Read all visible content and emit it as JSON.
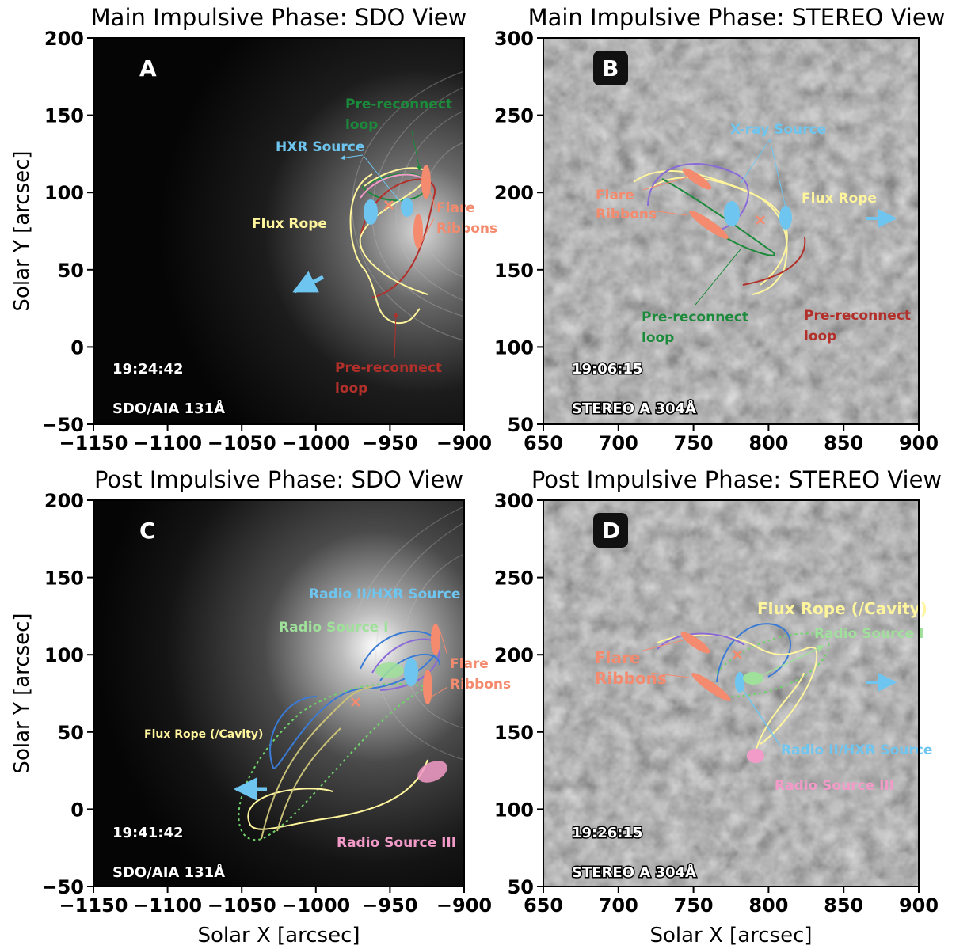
{
  "panels": [
    {
      "id": "A",
      "title": "Main Impulsive Phase: SDO View",
      "letter": "A",
      "time": "19:24:42",
      "instrument": "SDO/AIA 131Å",
      "xticks": [
        "−1150",
        "−1100",
        "−1050",
        "−1000",
        "−950",
        "−900"
      ],
      "yticks": [
        "200",
        "150",
        "100",
        "50",
        "0",
        "−50"
      ],
      "labels": {
        "preloop_top": [
          "Pre-reconnect",
          "loop"
        ],
        "hxr": "HXR Source",
        "flux_rope": "Flux Rope",
        "flare_ribbons": [
          "Flare",
          "Ribbons"
        ],
        "preloop_bottom": [
          "Pre-reconnect",
          "loop"
        ]
      }
    },
    {
      "id": "B",
      "title": "Main Impulsive Phase: STEREO View",
      "letter": "B",
      "time": "19:06:15",
      "instrument": "STEREO A 304Å",
      "xticks": [
        "650",
        "700",
        "750",
        "800",
        "850",
        "900"
      ],
      "yticks": [
        "300",
        "250",
        "200",
        "150",
        "100",
        "50"
      ],
      "labels": {
        "xray": "X-ray Source",
        "flare_ribbons": [
          "Flare",
          "Ribbons"
        ],
        "flux_rope": "Flux Rope",
        "preloop_green": [
          "Pre-reconnect",
          "loop"
        ],
        "preloop_red": [
          "Pre-reconnect",
          "loop"
        ]
      }
    },
    {
      "id": "C",
      "title": "Post Impulsive Phase: SDO View",
      "letter": "C",
      "time": "19:41:42",
      "instrument": "SDO/AIA 131Å",
      "xticks": [
        "−1150",
        "−1100",
        "−1050",
        "−1000",
        "−950",
        "−900"
      ],
      "yticks": [
        "200",
        "150",
        "100",
        "50",
        "0",
        "−50"
      ],
      "labels": {
        "radio2": "Radio II/HXR Source",
        "radio1": "Radio Source I",
        "flare_ribbons": [
          "Flare",
          "Ribbons"
        ],
        "flux_rope": "Flux Rope (/Cavity)",
        "radio3": "Radio Source III"
      }
    },
    {
      "id": "D",
      "title": "Post Impulsive Phase: STEREO View",
      "letter": "D",
      "time": "19:26:15",
      "instrument": "STEREO A 304Å",
      "xticks": [
        "650",
        "700",
        "750",
        "800",
        "850",
        "900"
      ],
      "yticks": [
        "300",
        "250",
        "200",
        "150",
        "100",
        "50"
      ],
      "labels": {
        "flux_rope": "Flux Rope (/Cavity)",
        "radio1": "Radio Source I",
        "flare_ribbons": [
          "Flare",
          "Ribbons"
        ],
        "radio2": "Radio II/HXR Source",
        "radio3": "Radio Source III"
      }
    }
  ],
  "axis_labels": {
    "ylabel": "Solar Y [arcsec]",
    "xlabel": "Solar X [arcsec]"
  },
  "colors": {
    "flux_rope": "#fff59d",
    "pre_loop_green": "#1b8a3a",
    "pre_loop_red": "#b3302a",
    "hxr_source": "#6ec6f0",
    "flare_ribbon": "#f48a6e",
    "radio_I": "#9fe09a",
    "radio_III": "#f39bc8",
    "loop_blue": "#3a7bd5",
    "loop_violet": "#8a6ad8"
  }
}
